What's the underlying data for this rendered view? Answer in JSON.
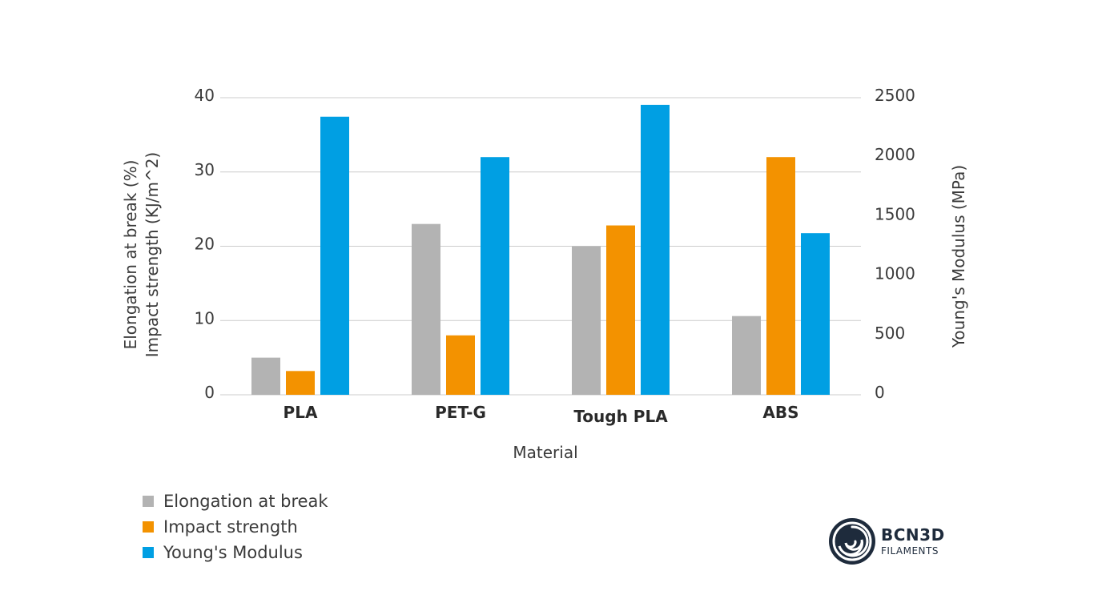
{
  "chart_data": {
    "type": "bar",
    "categories": [
      "PLA",
      "PET-G",
      "Tough PLA",
      "ABS"
    ],
    "series": [
      {
        "name": "Elongation at break",
        "axis": "left",
        "color": "#b3b3b3",
        "values": [
          5,
          23,
          20,
          10.6
        ]
      },
      {
        "name": "Impact strength",
        "axis": "left",
        "color": "#f39200",
        "values": [
          3.2,
          8,
          22.8,
          32
        ]
      },
      {
        "name": "Young's Modulus",
        "axis": "right",
        "color": "#009fe3",
        "values": [
          2340,
          2000,
          2440,
          1360
        ]
      }
    ],
    "xlabel": "Material",
    "ylabel_left": [
      "Elongation at break (%)",
      "Impact strength (KJ/m^2)"
    ],
    "ylabel_right": "Young's Modulus (MPa)",
    "ylim_left": [
      0,
      40
    ],
    "yticks_left": [
      "0",
      "10",
      "20",
      "30",
      "40"
    ],
    "ylim_right": [
      0,
      2500
    ],
    "yticks_right": [
      "0",
      "500",
      "1000",
      "1500",
      "2000",
      "2500"
    ],
    "grid": true,
    "legend_position": "bottom-left"
  },
  "logo": {
    "brand": "BCN3D",
    "sub": "FILAMENTS"
  }
}
